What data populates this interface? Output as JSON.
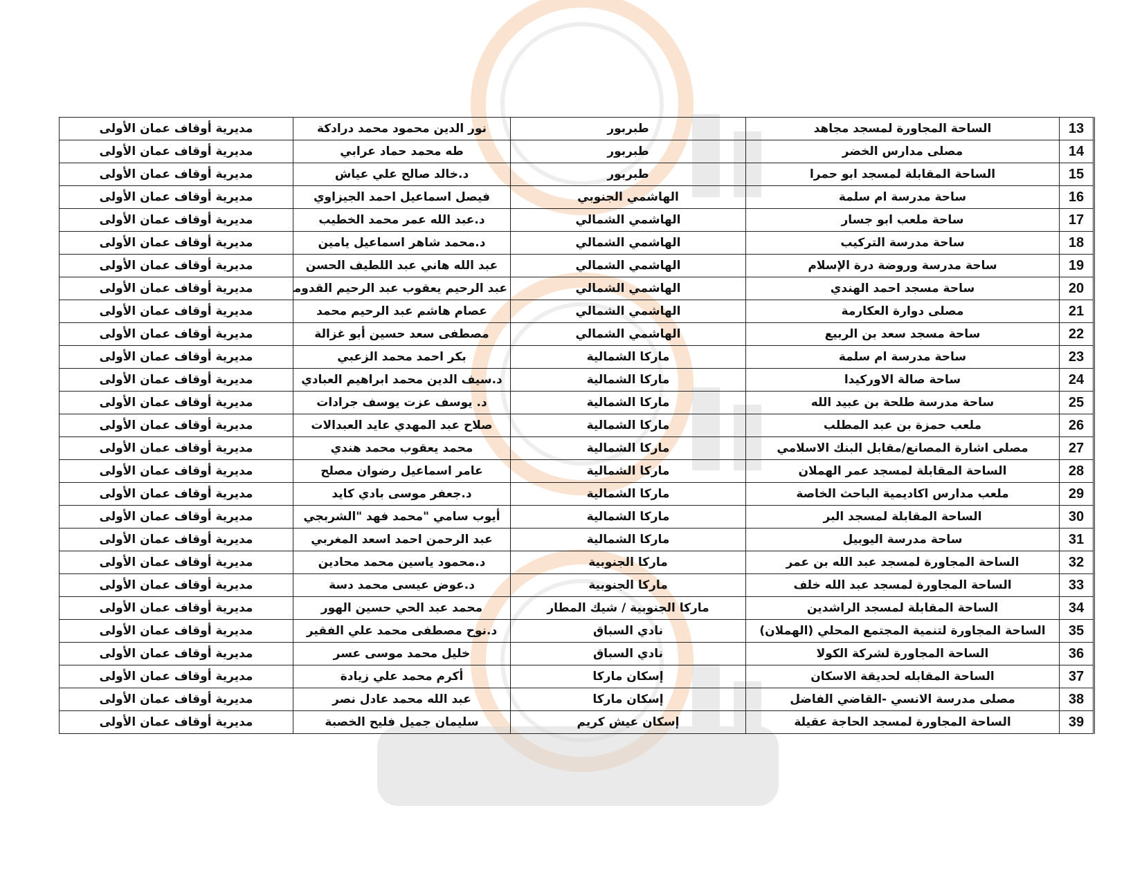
{
  "watermark": {
    "text": "مدار الساعة",
    "clock_color": "#f3b27a",
    "text_color": "#d9d9d9"
  },
  "rows": [
    {
      "num": "13",
      "location": "الساحة المجاورة لمسجد مجاهد",
      "area": "طبربور",
      "name": "نور الدين محمود محمد درادكة",
      "directorate": "مديرية أوقاف عمان الأولى"
    },
    {
      "num": "14",
      "location": "مصلى مدارس الخضر",
      "area": "طبربور",
      "name": "طه محمد حماد عرابي",
      "directorate": "مديرية أوقاف عمان الأولى"
    },
    {
      "num": "15",
      "location": "الساحة المقابلة لمسجد ابو حمرا",
      "area": "طبربور",
      "name": "د.خالد صالح علي عياش",
      "directorate": "مديرية أوقاف عمان الأولى"
    },
    {
      "num": "16",
      "location": "ساحة مدرسة ام سلمة",
      "area": "الهاشمي الجنوبي",
      "name": "فيصل اسماعيل احمد الجيزاوي",
      "directorate": "مديرية أوقاف عمان الأولى"
    },
    {
      "num": "17",
      "location": "ساحة ملعب ابو جسار",
      "area": "الهاشمي الشمالي",
      "name": "د.عبد الله عمر محمد الخطيب",
      "directorate": "مديرية أوقاف عمان الأولى"
    },
    {
      "num": "18",
      "location": "ساحة مدرسة التركيب",
      "area": "الهاشمي الشمالي",
      "name": "د.محمد شاهر اسماعيل يامين",
      "directorate": "مديرية أوقاف عمان الأولى"
    },
    {
      "num": "19",
      "location": "ساحة مدرسة وروضة درة الإسلام",
      "area": "الهاشمي الشمالي",
      "name": "عبد الله هاني عبد اللطيف الحسن",
      "directorate": "مديرية أوقاف عمان الأولى"
    },
    {
      "num": "20",
      "location": "ساحة مسجد احمد الهندي",
      "area": "الهاشمي الشمالي",
      "name": "عبد الرحيم يعقوب عبد الرحيم القدومي",
      "directorate": "مديرية أوقاف عمان الأولى"
    },
    {
      "num": "21",
      "location": "مصلى دوارة العكارمة",
      "area": "الهاشمي الشمالي",
      "name": "عصام هاشم عبد الرحيم محمد",
      "directorate": "مديرية أوقاف عمان الأولى"
    },
    {
      "num": "22",
      "location": "ساحة مسجد سعد بن الربيع",
      "area": "الهاشمي الشمالي",
      "name": "مصطفى سعد حسين أبو غزالة",
      "directorate": "مديرية أوقاف عمان الأولى"
    },
    {
      "num": "23",
      "location": "ساحة مدرسة ام سلمة",
      "area": "ماركا الشمالية",
      "name": "بكر احمد محمد الزعبي",
      "directorate": "مديرية أوقاف عمان الأولى"
    },
    {
      "num": "24",
      "location": "ساحة صالة الاوركيدا",
      "area": "ماركا الشمالية",
      "name": "د.سيف الدين محمد ابراهيم العبادي",
      "directorate": "مديرية أوقاف عمان الأولى"
    },
    {
      "num": "25",
      "location": "ساحة مدرسة طلحة بن عبيد الله",
      "area": "ماركا الشمالية",
      "name": "د. يوسف عزت يوسف جرادات",
      "directorate": "مديرية أوقاف عمان الأولى"
    },
    {
      "num": "26",
      "location": "ملعب حمزة بن عبد المطلب",
      "area": "ماركا الشمالية",
      "name": "صلاح عبد المهدي عايد العبدالات",
      "directorate": "مديرية أوقاف عمان الأولى"
    },
    {
      "num": "27",
      "location": "مصلى اشارة المصانع/مقابل البنك الاسلامي",
      "area": "ماركا الشمالية",
      "name": "محمد يعقوب محمد هندي",
      "directorate": "مديرية أوقاف عمان الأولى"
    },
    {
      "num": "28",
      "location": "الساحة المقابلة لمسجد عمر الهملان",
      "area": "ماركا الشمالية",
      "name": "عامر اسماعيل رضوان مصلح",
      "directorate": "مديرية أوقاف عمان الأولى"
    },
    {
      "num": "29",
      "location": "ملعب مدارس اكاديمية الباحث الخاصة",
      "area": "ماركا الشمالية",
      "name": "د.جعفر موسى بادي كايد",
      "directorate": "مديرية أوقاف عمان الأولى"
    },
    {
      "num": "30",
      "location": "الساحة المقابلة لمسجد البر",
      "area": "ماركا الشمالية",
      "name": "أيوب سامي \"محمد فهد \"الشربجي",
      "directorate": "مديرية أوقاف عمان الأولى"
    },
    {
      "num": "31",
      "location": "ساحة مدرسة اليوبيل",
      "area": "ماركا الشمالية",
      "name": "عبد الرحمن احمد اسعد المغربي",
      "directorate": "مديرية أوقاف عمان الأولى"
    },
    {
      "num": "32",
      "location": "الساحة المجاورة لمسجد عبد الله بن عمر",
      "area": "ماركا الجنوبية",
      "name": "د.محمود ياسين محمد محادين",
      "directorate": "مديرية أوقاف عمان الأولى"
    },
    {
      "num": "33",
      "location": "الساحة المجاورة لمسجد عبد الله خلف",
      "area": "ماركا الجنوبية",
      "name": "د.عوض عيسى محمد دسة",
      "directorate": "مديرية أوقاف عمان الأولى"
    },
    {
      "num": "34",
      "location": "الساحة المقابلة لمسجد الراشدين",
      "area": "ماركا الجنوبية / شيك المطار",
      "name": "محمد عبد الحي حسين الهور",
      "directorate": "مديرية أوقاف عمان الأولى"
    },
    {
      "num": "35",
      "location": "الساحة المجاورة لتنمية المجتمع المحلي (الهملان)",
      "area": "نادي السباق",
      "name": "د.نوح مصطفى محمد علي  الفقير",
      "directorate": "مديرية أوقاف عمان الأولى"
    },
    {
      "num": "36",
      "location": "الساحة المجاورة لشركة الكولا",
      "area": "نادي السباق",
      "name": "خليل محمد موسى عسر",
      "directorate": "مديرية أوقاف عمان الأولى"
    },
    {
      "num": "37",
      "location": "الساحة المقابله لحديقة الاسكان",
      "area": "إسكان ماركا",
      "name": "أكرم محمد علي زيادة",
      "directorate": "مديرية أوقاف عمان الأولى"
    },
    {
      "num": "38",
      "location": "مصلى مدرسة الانسي -القاضي الفاضل",
      "area": "إسكان ماركا",
      "name": "عبد الله محمد عادل نصر",
      "directorate": "مديرية أوقاف عمان الأولى"
    },
    {
      "num": "39",
      "location": "الساحة المجاورة لمسجد الحاجة عقيلة",
      "area": "إسكان عيش كريم",
      "name": "سليمان جميل فليح الخصبة",
      "directorate": "مديرية أوقاف عمان الأولى"
    }
  ]
}
